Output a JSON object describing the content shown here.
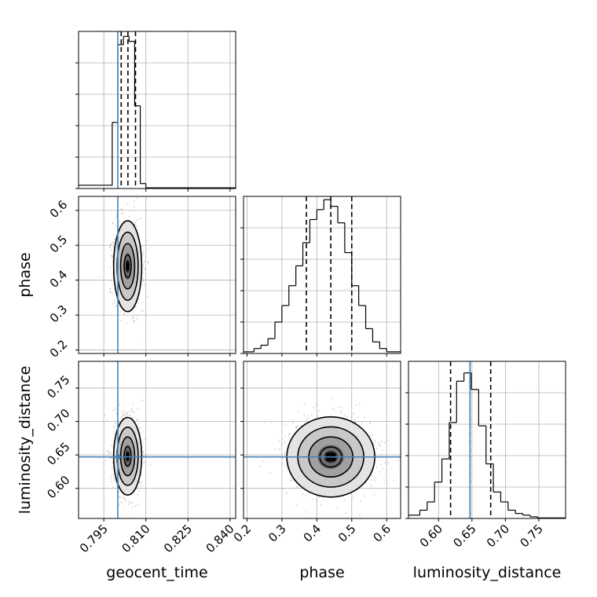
{
  "chart_data": {
    "type": "corner",
    "parameters": [
      "geocent_time",
      "phase",
      "luminosity_distance"
    ],
    "truths": {
      "geocent_time": 0.8,
      "luminosity_distance": 0.647
    },
    "truth_color": "#4682b4",
    "grid": true,
    "axes": {
      "geocent_time": {
        "range": [
          0.786,
          0.842
        ],
        "ticks": [
          0.795,
          0.81,
          0.825,
          0.84
        ],
        "tick_labels": [
          "0.795",
          "0.810",
          "0.825",
          "0.840"
        ]
      },
      "phase": {
        "range": [
          0.19,
          0.64
        ],
        "ticks": [
          0.2,
          0.3,
          0.4,
          0.5,
          0.6
        ],
        "tick_labels": [
          "0.2",
          "0.3",
          "0.4",
          "0.5",
          "0.6"
        ]
      },
      "luminosity_distance": {
        "range": [
          0.555,
          0.79
        ],
        "ticks": [
          0.6,
          0.65,
          0.7,
          0.75
        ],
        "tick_labels": [
          "0.60",
          "0.65",
          "0.70",
          "0.75"
        ]
      }
    },
    "histograms": [
      {
        "param": "geocent_time",
        "bin_edges": [
          0.786,
          0.798,
          0.8,
          0.802,
          0.804,
          0.806,
          0.808,
          0.81,
          0.842
        ],
        "counts": [
          0.02,
          0.4,
          0.87,
          0.92,
          0.89,
          0.5,
          0.03,
          0.004
        ],
        "quantiles": [
          0.8012,
          0.8036,
          0.8063
        ]
      },
      {
        "param": "phase",
        "bin_edges": [
          0.19,
          0.22,
          0.24,
          0.26,
          0.28,
          0.3,
          0.32,
          0.34,
          0.36,
          0.38,
          0.4,
          0.42,
          0.44,
          0.46,
          0.48,
          0.5,
          0.52,
          0.54,
          0.56,
          0.58,
          0.6,
          0.64
        ],
        "counts": [
          0.01,
          0.03,
          0.05,
          0.09,
          0.19,
          0.29,
          0.41,
          0.53,
          0.67,
          0.81,
          0.87,
          0.93,
          0.89,
          0.79,
          0.61,
          0.41,
          0.29,
          0.15,
          0.07,
          0.03,
          0.01
        ],
        "quantiles": [
          0.37,
          0.44,
          0.5
        ]
      },
      {
        "param": "luminosity_distance",
        "bin_edges": [
          0.555,
          0.572,
          0.583,
          0.594,
          0.605,
          0.616,
          0.627,
          0.638,
          0.649,
          0.66,
          0.671,
          0.682,
          0.693,
          0.704,
          0.715,
          0.726,
          0.737,
          0.748,
          0.79
        ],
        "counts": [
          0.02,
          0.05,
          0.1,
          0.22,
          0.36,
          0.58,
          0.83,
          0.88,
          0.78,
          0.56,
          0.33,
          0.16,
          0.1,
          0.05,
          0.03,
          0.02,
          0.01,
          0.003
        ],
        "quantiles": [
          0.618,
          0.647,
          0.678
        ]
      }
    ],
    "pairs": [
      {
        "x": "geocent_time",
        "y": "phase",
        "center": [
          0.8035,
          0.44
        ],
        "spread": [
          0.0025,
          0.065
        ],
        "contour_sigmas": [
          0.5,
          1.0,
          1.5,
          2.0
        ]
      },
      {
        "x": "geocent_time",
        "y": "luminosity_distance",
        "center": [
          0.8035,
          0.648
        ],
        "spread": [
          0.0025,
          0.029
        ],
        "contour_sigmas": [
          0.5,
          1.0,
          1.5,
          2.0
        ]
      },
      {
        "x": "phase",
        "y": "luminosity_distance",
        "center": [
          0.44,
          0.647
        ],
        "spread": [
          0.063,
          0.03
        ],
        "contour_sigmas": [
          0.5,
          1.0,
          1.5,
          2.0
        ]
      }
    ]
  }
}
